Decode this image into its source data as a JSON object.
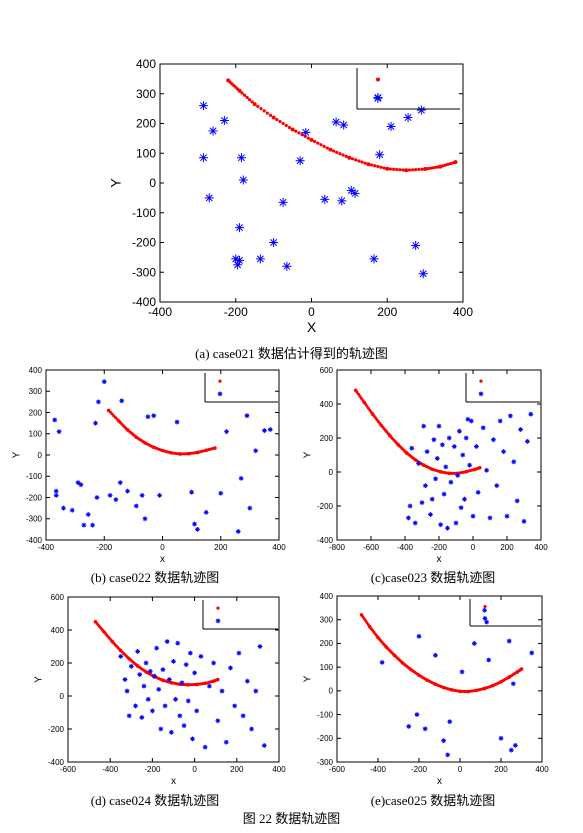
{
  "figure_caption": "图 22  数据轨迹图",
  "captions": [
    "(a)   case021 数据估计得到的轨迹图",
    "(b) case022 数据轨迹图",
    "(c)case023  数据轨迹图",
    "(d) case024 数据轨迹图",
    "(e)case025  数据轨迹图"
  ],
  "chart_data": [
    {
      "type": "scatter",
      "title": "",
      "xlabel": "X",
      "ylabel": "Y",
      "xlim": [
        -400,
        400
      ],
      "ylim": [
        -400,
        400
      ],
      "xticks": [
        -400,
        -200,
        0,
        200,
        400
      ],
      "yticks": [
        -400,
        -300,
        -200,
        -100,
        0,
        100,
        200,
        300,
        400
      ],
      "grid": false,
      "legend": "top-right (markers only, no text)",
      "series": [
        {
          "marker": "dot",
          "color": "#ff0000",
          "x": [
            -220,
            -190,
            -150,
            -100,
            -50,
            0,
            50,
            100,
            150,
            200,
            250,
            300,
            340,
            380
          ],
          "y": [
            345,
            310,
            265,
            220,
            180,
            145,
            112,
            85,
            63,
            48,
            43,
            47,
            55,
            70
          ]
        },
        {
          "marker": "asterisk",
          "color": "#0000ff",
          "x": [
            -285,
            -285,
            -270,
            -260,
            -230,
            -185,
            -180,
            -190,
            -190,
            -195,
            -200,
            -135,
            -100,
            -75,
            -65,
            -30,
            -15,
            35,
            65,
            80,
            85,
            105,
            115,
            165,
            175,
            180,
            210,
            255,
            275,
            290,
            295
          ],
          "y": [
            260,
            85,
            -50,
            175,
            210,
            85,
            10,
            -150,
            -260,
            -275,
            -255,
            -255,
            -200,
            -65,
            -280,
            75,
            170,
            -55,
            205,
            -60,
            195,
            -25,
            -35,
            -255,
            285,
            95,
            190,
            220,
            -210,
            245,
            -305
          ]
        }
      ]
    },
    {
      "type": "scatter",
      "title": "",
      "xlabel": "x",
      "ylabel": "Y",
      "xlim": [
        -400,
        400
      ],
      "ylim": [
        -400,
        400
      ],
      "xticks": [
        -400,
        -200,
        0,
        200,
        400
      ],
      "yticks": [
        -400,
        -300,
        -200,
        -100,
        0,
        100,
        200,
        300,
        400
      ],
      "grid": false,
      "legend": "top-right (markers only, no text)",
      "series": [
        {
          "marker": "dot",
          "color": "#ff0000",
          "x": [
            -185,
            -150,
            -120,
            -90,
            -60,
            -30,
            0,
            30,
            60,
            90,
            120,
            150,
            180
          ],
          "y": [
            210,
            160,
            118,
            84,
            57,
            36,
            21,
            10,
            5,
            6,
            12,
            22,
            33
          ]
        },
        {
          "marker": "star",
          "color": "#0000ff",
          "x": [
            -370,
            -365,
            -365,
            -355,
            -340,
            -310,
            -290,
            -280,
            -270,
            -255,
            -240,
            -230,
            -225,
            -220,
            -200,
            -180,
            -160,
            -145,
            -140,
            -120,
            -90,
            -70,
            -60,
            -50,
            -30,
            -10,
            50,
            100,
            110,
            120,
            150,
            200,
            220,
            260,
            270,
            290,
            300,
            320,
            350,
            370
          ],
          "y": [
            165,
            -170,
            -190,
            110,
            -250,
            -260,
            -130,
            -140,
            -330,
            -280,
            -330,
            150,
            -200,
            250,
            345,
            -190,
            -210,
            -130,
            255,
            -170,
            -240,
            -190,
            -300,
            180,
            185,
            -190,
            155,
            -175,
            -325,
            -350,
            -270,
            -180,
            110,
            -360,
            -110,
            185,
            -250,
            20,
            115,
            120
          ]
        }
      ]
    },
    {
      "type": "scatter",
      "title": "",
      "xlabel": "x",
      "ylabel": "Y",
      "xlim": [
        -800,
        400
      ],
      "ylim": [
        -400,
        600
      ],
      "xticks": [
        -800,
        -600,
        -400,
        -200,
        0,
        200,
        400
      ],
      "yticks": [
        -400,
        -200,
        0,
        200,
        400,
        600
      ],
      "grid": false,
      "legend": "top-right (markers only, no text)",
      "series": [
        {
          "marker": "dot",
          "color": "#ff0000",
          "x": [
            -690,
            -640,
            -590,
            -540,
            -490,
            -440,
            -390,
            -340,
            -290,
            -240,
            -190,
            -140,
            -90,
            -40,
            10,
            40
          ],
          "y": [
            480,
            410,
            340,
            275,
            215,
            160,
            112,
            72,
            40,
            16,
            1,
            -8,
            -8,
            2,
            15,
            25
          ]
        },
        {
          "marker": "star",
          "color": "#0000ff",
          "x": [
            -380,
            -370,
            -360,
            -340,
            -320,
            -300,
            -290,
            -280,
            -270,
            -250,
            -240,
            -230,
            -220,
            -210,
            -200,
            -190,
            -180,
            -170,
            -160,
            -150,
            -140,
            -130,
            -110,
            -100,
            -90,
            -80,
            -70,
            -60,
            -50,
            -40,
            -30,
            -20,
            -10,
            0,
            20,
            30,
            60,
            80,
            100,
            120,
            140,
            160,
            180,
            200,
            220,
            240,
            260,
            280,
            300,
            320,
            340
          ],
          "y": [
            -270,
            -200,
            140,
            -300,
            50,
            -180,
            270,
            -80,
            120,
            -250,
            -160,
            190,
            -40,
            80,
            270,
            -310,
            160,
            -130,
            30,
            -330,
            200,
            -60,
            150,
            -300,
            -20,
            240,
            -210,
            100,
            -160,
            200,
            310,
            40,
            300,
            -260,
            150,
            -120,
            260,
            10,
            -270,
            190,
            -80,
            300,
            120,
            -260,
            330,
            60,
            -170,
            250,
            -290,
            180,
            340
          ]
        }
      ]
    },
    {
      "type": "scatter",
      "title": "",
      "xlabel": "x",
      "ylabel": "Y",
      "xlim": [
        -600,
        400
      ],
      "ylim": [
        -400,
        600
      ],
      "xticks": [
        -600,
        -400,
        -200,
        0,
        200,
        400
      ],
      "yticks": [
        -400,
        -200,
        0,
        200,
        400,
        600
      ],
      "grid": false,
      "legend": "top-right (markers only, no text)",
      "series": [
        {
          "marker": "dot",
          "color": "#ff0000",
          "x": [
            -470,
            -430,
            -390,
            -350,
            -310,
            -270,
            -230,
            -190,
            -150,
            -110,
            -70,
            -30,
            10,
            50,
            90,
            110
          ],
          "y": [
            450,
            390,
            330,
            275,
            225,
            182,
            146,
            117,
            95,
            80,
            71,
            68,
            70,
            77,
            90,
            100
          ]
        },
        {
          "marker": "star",
          "color": "#0000ff",
          "x": [
            -350,
            -330,
            -320,
            -310,
            -300,
            -280,
            -270,
            -260,
            -250,
            -240,
            -230,
            -220,
            -210,
            -200,
            -190,
            -180,
            -170,
            -160,
            -150,
            -140,
            -130,
            -120,
            -110,
            -100,
            -90,
            -80,
            -70,
            -60,
            -50,
            -40,
            -30,
            -20,
            -10,
            0,
            10,
            30,
            50,
            70,
            90,
            110,
            130,
            150,
            170,
            190,
            210,
            230,
            250,
            270,
            290,
            310,
            330
          ],
          "y": [
            240,
            100,
            30,
            -120,
            180,
            -60,
            270,
            130,
            -130,
            60,
            200,
            -20,
            150,
            -90,
            120,
            290,
            40,
            -200,
            160,
            -60,
            330,
            100,
            -220,
            210,
            -20,
            320,
            -120,
            80,
            -180,
            190,
            -30,
            260,
            -260,
            140,
            -90,
            240,
            -310,
            60,
            200,
            -150,
            30,
            -280,
            170,
            -60,
            260,
            -120,
            90,
            -200,
            30,
            300,
            -300
          ]
        }
      ]
    },
    {
      "type": "scatter",
      "title": "",
      "xlabel": "x",
      "ylabel": "Y",
      "xlim": [
        -600,
        400
      ],
      "ylim": [
        -300,
        400
      ],
      "xticks": [
        -600,
        -400,
        -200,
        0,
        200,
        400
      ],
      "yticks": [
        -300,
        -200,
        -100,
        0,
        100,
        200,
        300,
        400
      ],
      "grid": false,
      "legend": "top-right (markers only, no text)",
      "series": [
        {
          "marker": "dot",
          "color": "#ff0000",
          "x": [
            -480,
            -440,
            -400,
            -360,
            -320,
            -280,
            -240,
            -200,
            -160,
            -120,
            -80,
            -40,
            0,
            40,
            80,
            120,
            160,
            200,
            240,
            280,
            300
          ],
          "y": [
            320,
            270,
            225,
            185,
            150,
            118,
            90,
            66,
            45,
            28,
            14,
            4,
            -2,
            -3,
            2,
            10,
            22,
            38,
            58,
            80,
            92
          ]
        },
        {
          "marker": "star",
          "color": "#0000ff",
          "x": [
            -380,
            -250,
            -210,
            -200,
            -170,
            -120,
            -80,
            -60,
            -50,
            10,
            70,
            120,
            130,
            140,
            200,
            240,
            250,
            260,
            270,
            350
          ],
          "y": [
            120,
            -150,
            -100,
            230,
            -160,
            150,
            -210,
            -270,
            -130,
            80,
            200,
            340,
            290,
            130,
            -200,
            210,
            -250,
            30,
            -230,
            160
          ]
        }
      ]
    }
  ]
}
